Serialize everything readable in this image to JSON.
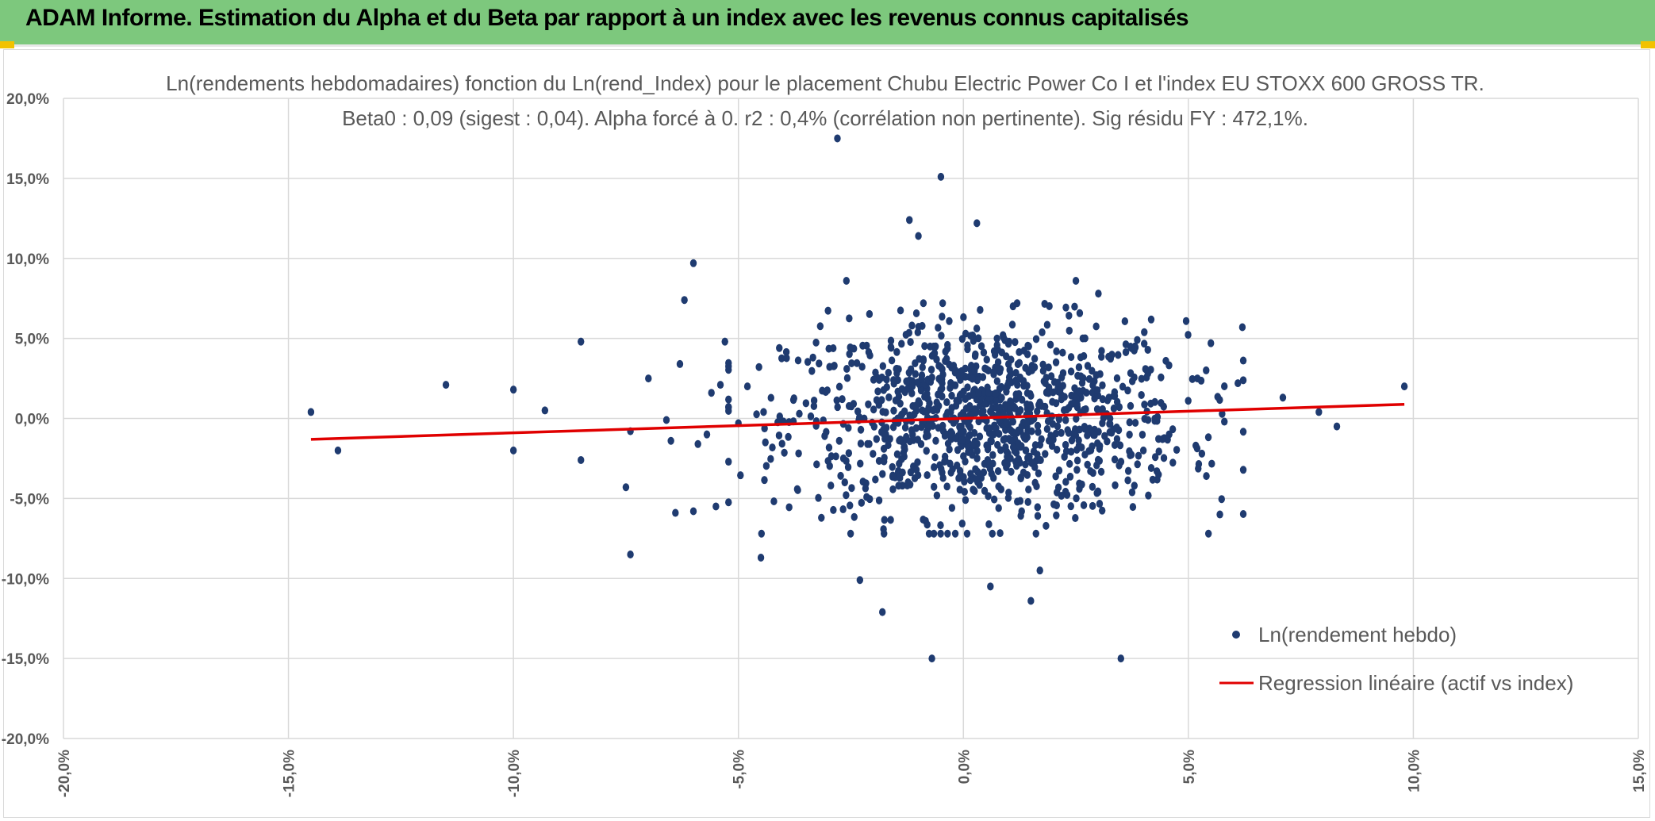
{
  "banner": {
    "title": "ADAM Informe. Estimation du Alpha et du Beta par rapport à un index avec les revenus connus capitalisés"
  },
  "colors": {
    "banner_bg": "#7dc87d",
    "points": "#1f3b70",
    "regression": "#e00000",
    "grid": "#d9d9d9",
    "text": "#595959",
    "corner_accent": "#f2c200"
  },
  "chart_data": {
    "type": "scatter",
    "title_line1": "Ln(rendements hebdomadaires) fonction du Ln(rend_Index) pour le placement Chubu Electric Power Co I et l'index EU STOXX 600 GROSS TR.",
    "title_line2": "Beta0 : 0,09 (sigest : 0,04). Alpha forcé à 0. r2 : 0,4% (corrélation non pertinente). Sig résidu FY : 472,1%.",
    "xlim": [
      -0.2,
      0.15
    ],
    "ylim": [
      -0.2,
      0.2
    ],
    "x_ticks": [
      -0.2,
      -0.15,
      -0.1,
      -0.05,
      0.0,
      0.05,
      0.1,
      0.15
    ],
    "y_ticks": [
      -0.2,
      -0.15,
      -0.1,
      -0.05,
      0.0,
      0.05,
      0.1,
      0.15,
      0.2
    ],
    "x_tick_labels": [
      "-20,0%",
      "-15,0%",
      "-10,0%",
      "-5,0%",
      "0,0%",
      "5,0%",
      "10,0%",
      "15,0%"
    ],
    "y_tick_labels": [
      "-20,0%",
      "-15,0%",
      "-10,0%",
      "-5,0%",
      "0,0%",
      "5,0%",
      "10,0%",
      "15,0%",
      "20,0%"
    ],
    "grid": true,
    "legend_position": "bottom-right",
    "series": [
      {
        "name": "Ln(rendement hebdo)",
        "kind": "scatter",
        "points": [
          [
            -0.145,
            0.004
          ],
          [
            -0.139,
            -0.02
          ],
          [
            -0.115,
            0.021
          ],
          [
            -0.1,
            0.018
          ],
          [
            -0.1,
            -0.02
          ],
          [
            -0.093,
            0.005
          ],
          [
            -0.085,
            0.048
          ],
          [
            -0.085,
            -0.026
          ],
          [
            -0.075,
            -0.043
          ],
          [
            -0.074,
            -0.008
          ],
          [
            -0.074,
            -0.085
          ],
          [
            -0.07,
            0.025
          ],
          [
            -0.066,
            -0.001
          ],
          [
            -0.065,
            -0.014
          ],
          [
            -0.064,
            -0.059
          ],
          [
            -0.063,
            0.034
          ],
          [
            -0.062,
            0.074
          ],
          [
            -0.06,
            0.097
          ],
          [
            -0.06,
            -0.058
          ],
          [
            -0.059,
            -0.016
          ],
          [
            -0.057,
            -0.01
          ],
          [
            -0.056,
            0.016
          ],
          [
            -0.055,
            -0.055
          ],
          [
            -0.054,
            0.021
          ],
          [
            -0.053,
            0.048
          ],
          [
            -0.05,
            -0.003
          ],
          [
            -0.048,
            0.02
          ],
          [
            -0.045,
            -0.087
          ],
          [
            -0.028,
            0.175
          ],
          [
            -0.026,
            0.086
          ],
          [
            -0.023,
            -0.101
          ],
          [
            -0.018,
            -0.121
          ],
          [
            -0.012,
            0.124
          ],
          [
            -0.01,
            0.114
          ],
          [
            -0.007,
            -0.15
          ],
          [
            -0.005,
            0.151
          ],
          [
            0.003,
            0.122
          ],
          [
            0.006,
            -0.105
          ],
          [
            0.015,
            -0.114
          ],
          [
            0.017,
            -0.095
          ],
          [
            0.025,
            0.086
          ],
          [
            0.03,
            0.078
          ],
          [
            0.035,
            -0.15
          ],
          [
            0.052,
            0.025
          ],
          [
            0.053,
            -0.022
          ],
          [
            0.054,
            -0.036
          ],
          [
            0.055,
            0.047
          ],
          [
            0.057,
            -0.06
          ],
          [
            0.058,
            -0.002
          ],
          [
            0.061,
            0.022
          ],
          [
            0.062,
            0.057
          ],
          [
            0.071,
            0.013
          ],
          [
            0.079,
            0.004
          ],
          [
            0.083,
            -0.005
          ],
          [
            0.098,
            0.02
          ],
          [
            0.04,
            -0.02
          ],
          [
            0.043,
            -0.033
          ],
          [
            0.038,
            -0.042
          ],
          [
            0.045,
            0.036
          ],
          [
            0.041,
            0.028
          ]
        ],
        "cluster": {
          "center_x": 0.005,
          "center_y": 0.0,
          "spread_x": 0.022,
          "spread_y": 0.03,
          "count": 1100
        }
      },
      {
        "name": "Regression linéaire (actif vs index)",
        "kind": "line",
        "slope": 0.09,
        "intercept": 0.0,
        "x_range": [
          -0.145,
          0.098
        ]
      }
    ]
  }
}
